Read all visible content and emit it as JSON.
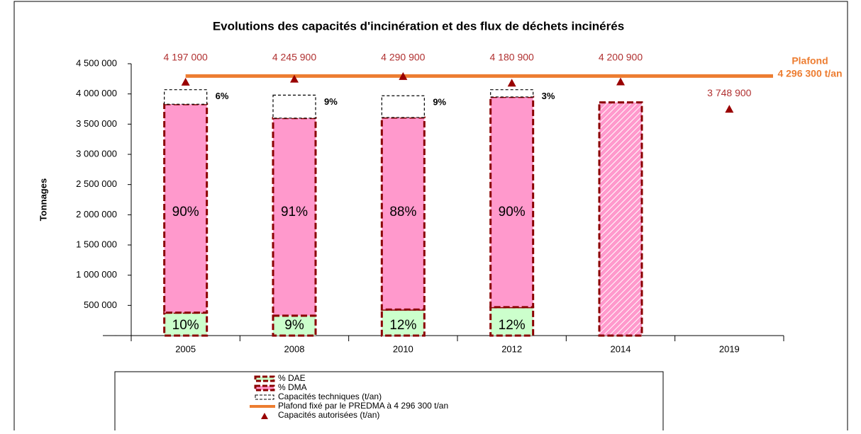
{
  "chart_data": {
    "type": "bar",
    "title": "Evolutions des capacités d'incinération et des flux de déchets incinérés",
    "y_label": "Tonnages",
    "categories": [
      "2005",
      "2008",
      "2010",
      "2012",
      "2014",
      "2019"
    ],
    "ylim": [
      0,
      4500000
    ],
    "yticks": [
      {
        "value": 0,
        "label": "-"
      },
      {
        "value": 500000,
        "label": "500 000"
      },
      {
        "value": 1000000,
        "label": "1 000 000"
      },
      {
        "value": 1500000,
        "label": "1 500 000"
      },
      {
        "value": 2000000,
        "label": "2 000 000"
      },
      {
        "value": 2500000,
        "label": "2 500 000"
      },
      {
        "value": 3000000,
        "label": "3 000 000"
      },
      {
        "value": 3500000,
        "label": "3 500 000"
      },
      {
        "value": 4000000,
        "label": "4 000 000"
      },
      {
        "value": 4500000,
        "label": "4 500 000"
      }
    ],
    "series": [
      {
        "name": "% DAE",
        "color": "#ccffcc",
        "stroke": "#8b0000",
        "values": [
          380000,
          330000,
          430000,
          470000,
          null,
          null
        ],
        "labels": [
          "10%",
          "9%",
          "12%",
          "12%",
          null,
          null
        ]
      },
      {
        "name": "% DMA",
        "color": "#ff99cc",
        "stroke": "#8b0000",
        "values": [
          3450000,
          3270000,
          3180000,
          3480000,
          3860000,
          null
        ],
        "labels": [
          "90%",
          "91%",
          "88%",
          "90%",
          null,
          null
        ],
        "hatched": [
          false,
          false,
          false,
          false,
          true,
          false
        ]
      },
      {
        "name": "Capacités techniques (t/an)",
        "color": "#ffffff",
        "stroke": "#000000",
        "values": [
          240000,
          380000,
          360000,
          120000,
          null,
          null
        ],
        "labels": [
          "6%",
          "9%",
          "9%",
          "3%",
          null,
          null
        ]
      },
      {
        "name": "Plafond fixé par le PREDMA à 4 296 300 t/an",
        "type": "line",
        "color": "#ed7d31",
        "value": 4296300,
        "annotation": [
          "Plafond",
          "4 296 300 t/an"
        ]
      },
      {
        "name": "Capacités autorisées (t/an)",
        "type": "marker",
        "color": "#990000",
        "values": [
          4197000,
          4245900,
          4290900,
          4180900,
          4200900,
          3748900
        ],
        "value_labels": [
          "4 197 000",
          "4 245 900",
          "4 290 900",
          "4 180 900",
          "4 200 900",
          "3 748 900"
        ]
      }
    ]
  }
}
